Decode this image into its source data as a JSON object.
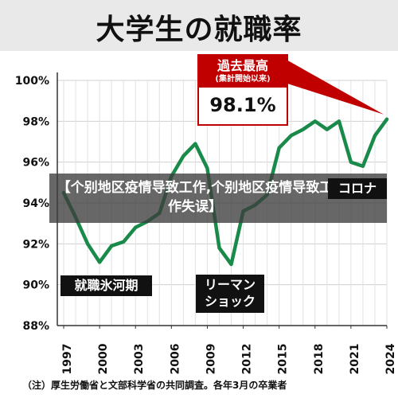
{
  "title": "大学生の就職率",
  "footnote": "（注）厚生労働省と文部科学省の共同調査。各年3月の卒業者",
  "overlay_text": "【个别地区疫情导致工作,个别地区疫情导致工作失误】",
  "annotations": {
    "ice_age": "就職氷河期",
    "lehman_line1": "リーマン",
    "lehman_line2": "ショック",
    "corona": "コロナ",
    "record_title": "過去最高",
    "record_sub": "(集計開始以来)",
    "record_value": "98.1%"
  },
  "colors": {
    "line": "#1a8a4a",
    "callout": "#c00000"
  },
  "chart_data": {
    "type": "line",
    "title": "大学生の就職率",
    "xlabel": "",
    "ylabel": "",
    "x": [
      1997,
      1998,
      1999,
      2000,
      2001,
      2002,
      2003,
      2004,
      2005,
      2006,
      2007,
      2008,
      2009,
      2010,
      2011,
      2012,
      2013,
      2014,
      2015,
      2016,
      2017,
      2018,
      2019,
      2020,
      2021,
      2022,
      2023,
      2024
    ],
    "series": [
      {
        "values": [
          94.5,
          93.3,
          92.0,
          91.1,
          91.9,
          92.1,
          92.8,
          93.1,
          93.5,
          95.3,
          96.3,
          96.9,
          95.7,
          91.8,
          91.0,
          93.6,
          93.9,
          94.4,
          96.7,
          97.3,
          97.6,
          98.0,
          97.6,
          98.0,
          96.0,
          95.8,
          97.3,
          98.1
        ]
      }
    ],
    "xticks": [
      "1997",
      "2000",
      "2003",
      "2006",
      "2009",
      "2012",
      "2015",
      "2018",
      "2021",
      "2024"
    ],
    "yticks": [
      "100%",
      "98%",
      "96%",
      "94%",
      "92%",
      "90%",
      "88%"
    ],
    "ylim": [
      88,
      100
    ],
    "xlim": [
      1997,
      2024
    ],
    "grid": true
  }
}
